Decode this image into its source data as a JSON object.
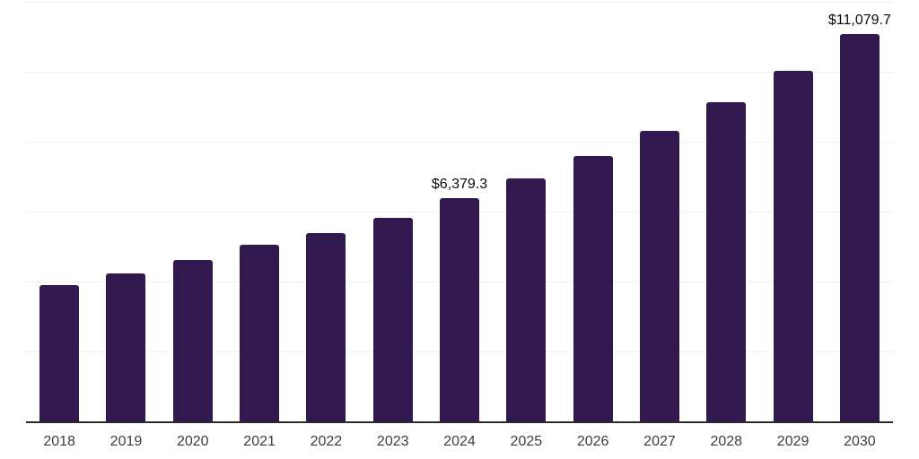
{
  "chart_data": {
    "type": "bar",
    "title": "",
    "xlabel": "",
    "ylabel": "",
    "categories": [
      "2018",
      "2019",
      "2020",
      "2021",
      "2022",
      "2023",
      "2024",
      "2025",
      "2026",
      "2027",
      "2028",
      "2029",
      "2030"
    ],
    "values": [
      3890,
      4220,
      4620,
      5060,
      5390,
      5820,
      6379.3,
      6960,
      7600,
      8300,
      9120,
      10030,
      11079.7
    ],
    "value_labels": {
      "2024": "$6,379.3",
      "2030": "$11,079.7"
    },
    "ylim": [
      0,
      12000
    ],
    "gridline_step": 2000,
    "grid": "horizontal-only",
    "legend_position": "none",
    "colors": {
      "bar": "#31184e",
      "gridline": "#f0f0f0",
      "axis_line": "#2b2b2b",
      "tick_label": "#3d3d3d",
      "value_label": "#0a0a0a",
      "background": "#ffffff"
    }
  }
}
